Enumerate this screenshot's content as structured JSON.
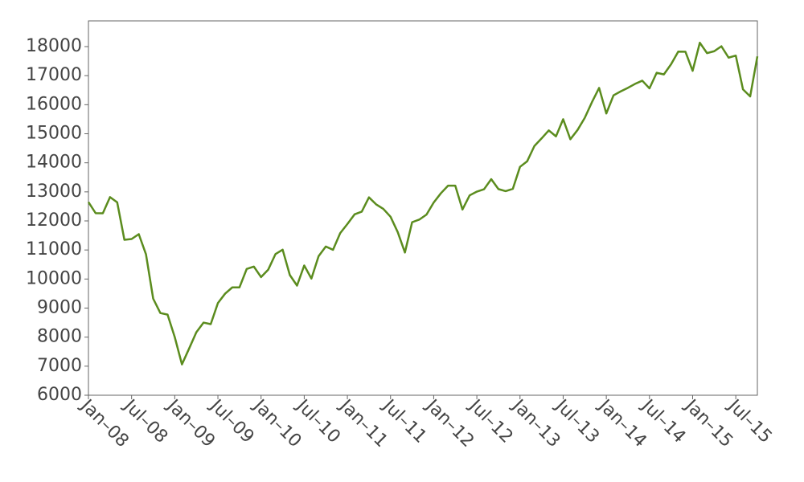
{
  "chart_data": {
    "type": "line",
    "color": "#5b8c1e",
    "x": [
      "2008-01",
      "2008-02",
      "2008-03",
      "2008-04",
      "2008-05",
      "2008-06",
      "2008-07",
      "2008-08",
      "2008-09",
      "2008-10",
      "2008-11",
      "2008-12",
      "2009-01",
      "2009-02",
      "2009-03",
      "2009-04",
      "2009-05",
      "2009-06",
      "2009-07",
      "2009-08",
      "2009-09",
      "2009-10",
      "2009-11",
      "2009-12",
      "2010-01",
      "2010-02",
      "2010-03",
      "2010-04",
      "2010-05",
      "2010-06",
      "2010-07",
      "2010-08",
      "2010-09",
      "2010-10",
      "2010-11",
      "2010-12",
      "2011-01",
      "2011-02",
      "2011-03",
      "2011-04",
      "2011-05",
      "2011-06",
      "2011-07",
      "2011-08",
      "2011-09",
      "2011-10",
      "2011-11",
      "2011-12",
      "2012-01",
      "2012-02",
      "2012-03",
      "2012-04",
      "2012-05",
      "2012-06",
      "2012-07",
      "2012-08",
      "2012-09",
      "2012-10",
      "2012-11",
      "2012-12",
      "2013-01",
      "2013-02",
      "2013-03",
      "2013-04",
      "2013-05",
      "2013-06",
      "2013-07",
      "2013-08",
      "2013-09",
      "2013-10",
      "2013-11",
      "2013-12",
      "2014-01",
      "2014-02",
      "2014-03",
      "2014-04",
      "2014-05",
      "2014-06",
      "2014-07",
      "2014-08",
      "2014-09",
      "2014-10",
      "2014-11",
      "2014-12",
      "2015-01",
      "2015-02",
      "2015-03",
      "2015-04",
      "2015-05",
      "2015-06",
      "2015-07",
      "2015-08",
      "2015-09",
      "2015-10"
    ],
    "values": [
      12650,
      12266,
      12262,
      12820,
      12638,
      11350,
      11378,
      11544,
      10851,
      9325,
      8829,
      8776,
      8001,
      7063,
      7609,
      8168,
      8500,
      8447,
      9172,
      9496,
      9712,
      9713,
      10345,
      10428,
      10067,
      10325,
      10857,
      11009,
      10137,
      9774,
      10466,
      10015,
      10788,
      11118,
      11006,
      11578,
      11892,
      12226,
      12320,
      12811,
      12570,
      12414,
      12143,
      11614,
      10913,
      11955,
      12046,
      12218,
      12633,
      12952,
      13212,
      13214,
      12393,
      12880,
      13009,
      13091,
      13437,
      13096,
      13026,
      13104,
      13861,
      14054,
      14579,
      14840,
      15116,
      14910,
      15500,
      14810,
      15130,
      15546,
      16086,
      16577,
      15699,
      16322,
      16458,
      16581,
      16717,
      16827,
      16563,
      17098,
      17043,
      17391,
      17828,
      17823,
      17165,
      18133,
      17776,
      17841,
      18011,
      17620,
      17690,
      16528,
      16285,
      17664
    ],
    "xlim": [
      "2008-01",
      "2015-10"
    ],
    "xticks": [
      {
        "value": "2008-01",
        "label": "Jan–08"
      },
      {
        "value": "2008-07",
        "label": "Jul–08"
      },
      {
        "value": "2009-01",
        "label": "Jan–09"
      },
      {
        "value": "2009-07",
        "label": "Jul–09"
      },
      {
        "value": "2010-01",
        "label": "Jan–10"
      },
      {
        "value": "2010-07",
        "label": "Jul–10"
      },
      {
        "value": "2011-01",
        "label": "Jan–11"
      },
      {
        "value": "2011-07",
        "label": "Jul–11"
      },
      {
        "value": "2012-01",
        "label": "Jan–12"
      },
      {
        "value": "2012-07",
        "label": "Jul–12"
      },
      {
        "value": "2013-01",
        "label": "Jan–13"
      },
      {
        "value": "2013-07",
        "label": "Jul–13"
      },
      {
        "value": "2014-01",
        "label": "Jan–14"
      },
      {
        "value": "2014-07",
        "label": "Jul–14"
      },
      {
        "value": "2015-01",
        "label": "Jan–15"
      },
      {
        "value": "2015-07",
        "label": "Jul–15"
      }
    ],
    "ylim": [
      6000,
      18885
    ],
    "yticks": [
      6000,
      7000,
      8000,
      9000,
      10000,
      11000,
      12000,
      13000,
      14000,
      15000,
      16000,
      17000,
      18000
    ],
    "grid": false
  }
}
